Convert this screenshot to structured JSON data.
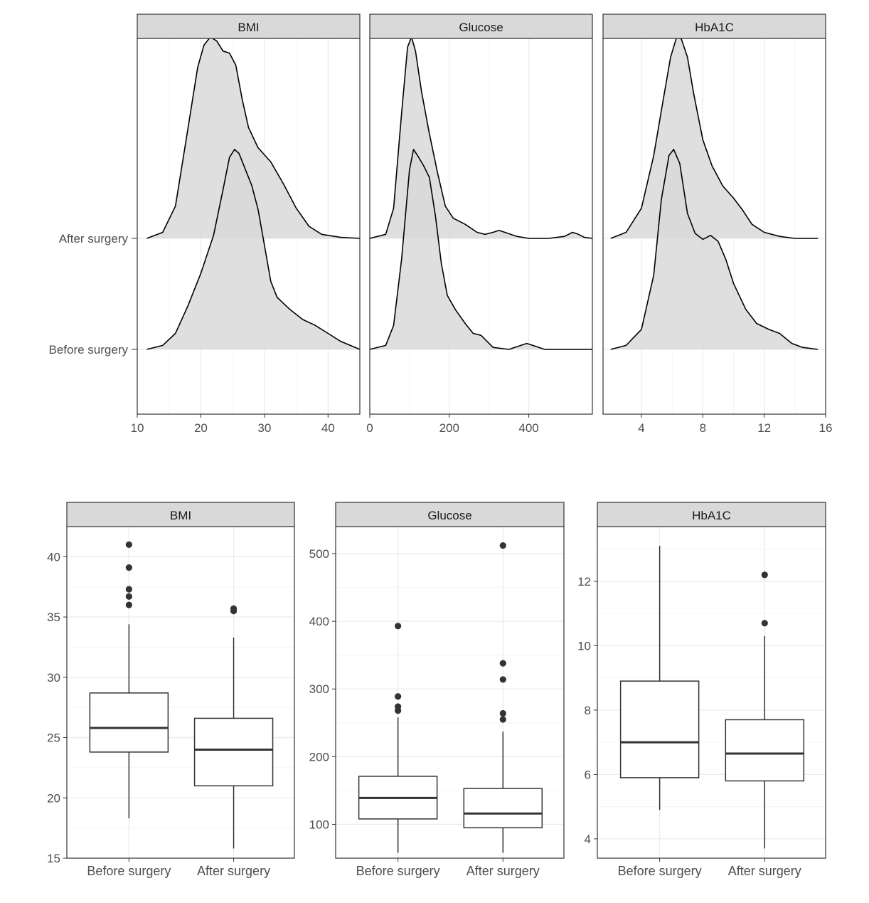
{
  "chart_data": [
    {
      "type": "ridgeline",
      "facets": [
        "BMI",
        "Glucose",
        "HbA1C"
      ],
      "groups": [
        "After surgery",
        "Before surgery"
      ],
      "panels": [
        {
          "facet": "BMI",
          "xlim": [
            10,
            45
          ],
          "xticks": [
            10,
            20,
            30,
            40
          ],
          "series": [
            {
              "group": "After surgery",
              "x": [
                11.5,
                14,
                16,
                18,
                19.5,
                20.5,
                21.5,
                22.5,
                23.5,
                24.5,
                25.5,
                26.5,
                27.5,
                29,
                31,
                33,
                35,
                37,
                39,
                42,
                45
              ],
              "density": [
                0,
                0.03,
                0.16,
                0.55,
                0.85,
                0.96,
                1.0,
                0.98,
                0.93,
                0.92,
                0.86,
                0.69,
                0.55,
                0.45,
                0.38,
                0.27,
                0.15,
                0.06,
                0.02,
                0.005,
                0
              ]
            },
            {
              "group": "Before surgery",
              "x": [
                11.5,
                14,
                16,
                18,
                20,
                22,
                23.5,
                24.5,
                25.3,
                26,
                27,
                28,
                29,
                30,
                31,
                32,
                34,
                36,
                38,
                40,
                42,
                45
              ],
              "density": [
                0,
                0.02,
                0.08,
                0.22,
                0.38,
                0.57,
                0.8,
                0.96,
                1.0,
                0.98,
                0.9,
                0.82,
                0.7,
                0.52,
                0.34,
                0.26,
                0.2,
                0.15,
                0.12,
                0.08,
                0.04,
                0
              ]
            }
          ]
        },
        {
          "facet": "Glucose",
          "xlim": [
            0,
            560
          ],
          "xticks": [
            0,
            200,
            400
          ],
          "series": [
            {
              "group": "After surgery",
              "x": [
                0,
                40,
                60,
                80,
                95,
                105,
                115,
                130,
                150,
                170,
                190,
                210,
                240,
                270,
                290,
                310,
                325,
                340,
                370,
                400,
                450,
                490,
                510,
                525,
                540,
                560
              ],
              "density": [
                0,
                0.02,
                0.15,
                0.62,
                0.95,
                1.0,
                0.93,
                0.73,
                0.52,
                0.33,
                0.16,
                0.1,
                0.07,
                0.03,
                0.02,
                0.03,
                0.04,
                0.03,
                0.01,
                0,
                0,
                0.01,
                0.03,
                0.02,
                0.005,
                0
              ]
            },
            {
              "group": "Before surgery",
              "x": [
                0,
                40,
                60,
                80,
                100,
                110,
                120,
                135,
                150,
                165,
                180,
                195,
                215,
                240,
                260,
                280,
                310,
                350,
                380,
                395,
                410,
                440,
                560
              ],
              "density": [
                0,
                0.02,
                0.12,
                0.45,
                0.9,
                1.0,
                0.97,
                0.92,
                0.86,
                0.67,
                0.43,
                0.27,
                0.2,
                0.13,
                0.08,
                0.07,
                0.01,
                0,
                0.02,
                0.03,
                0.02,
                0,
                0
              ]
            }
          ]
        },
        {
          "facet": "HbA1C",
          "xlim": [
            1.5,
            16
          ],
          "xticks": [
            4,
            8,
            12,
            16
          ],
          "series": [
            {
              "group": "After surgery",
              "x": [
                2,
                3,
                4,
                4.8,
                5.4,
                5.9,
                6.3,
                6.6,
                7,
                7.4,
                8,
                8.6,
                9.3,
                10,
                10.6,
                11.2,
                12,
                13,
                14,
                15.5
              ],
              "density": [
                0,
                0.03,
                0.15,
                0.41,
                0.68,
                0.9,
                1.0,
                0.99,
                0.9,
                0.72,
                0.49,
                0.36,
                0.26,
                0.2,
                0.14,
                0.07,
                0.03,
                0.01,
                0,
                0
              ]
            },
            {
              "group": "Before surgery",
              "x": [
                2,
                3,
                4,
                4.8,
                5.3,
                5.8,
                6.1,
                6.5,
                7,
                7.5,
                8,
                8.5,
                9,
                9.5,
                10,
                10.8,
                11.5,
                12.3,
                13,
                13.8,
                14.5,
                15.5
              ],
              "density": [
                0,
                0.02,
                0.1,
                0.37,
                0.75,
                0.97,
                1.0,
                0.93,
                0.68,
                0.58,
                0.55,
                0.57,
                0.54,
                0.45,
                0.33,
                0.2,
                0.13,
                0.1,
                0.08,
                0.03,
                0.01,
                0
              ]
            }
          ]
        }
      ]
    },
    {
      "type": "boxplot",
      "facets": [
        "BMI",
        "Glucose",
        "HbA1C"
      ],
      "categories": [
        "Before surgery",
        "After surgery"
      ],
      "panels": [
        {
          "facet": "BMI",
          "ylim": [
            15,
            42.5
          ],
          "yticks": [
            15,
            20,
            25,
            30,
            35,
            40
          ],
          "boxes": [
            {
              "category": "Before surgery",
              "min": 18.3,
              "q1": 23.8,
              "median": 25.8,
              "q3": 28.7,
              "max": 34.4,
              "outliers": [
                36.0,
                36.7,
                37.3,
                39.1,
                41.0
              ]
            },
            {
              "category": "After surgery",
              "min": 15.8,
              "q1": 21.0,
              "median": 24.0,
              "q3": 26.6,
              "max": 33.3,
              "outliers": [
                35.5,
                35.7
              ]
            }
          ]
        },
        {
          "facet": "Glucose",
          "ylim": [
            50,
            540
          ],
          "yticks": [
            100,
            200,
            300,
            400,
            500
          ],
          "boxes": [
            {
              "category": "Before surgery",
              "min": 58,
              "q1": 108,
              "median": 139,
              "q3": 171,
              "max": 258,
              "outliers": [
                268,
                274,
                289,
                393
              ]
            },
            {
              "category": "After surgery",
              "min": 58,
              "q1": 95,
              "median": 116,
              "q3": 153,
              "max": 237,
              "outliers": [
                255,
                264,
                314,
                338,
                512
              ]
            }
          ]
        },
        {
          "facet": "HbA1C",
          "ylim": [
            3.4,
            13.7
          ],
          "yticks": [
            4,
            6,
            8,
            10,
            12
          ],
          "boxes": [
            {
              "category": "Before surgery",
              "min": 4.9,
              "q1": 5.9,
              "median": 7.0,
              "q3": 8.9,
              "max": 13.1,
              "outliers": []
            },
            {
              "category": "After surgery",
              "min": 3.7,
              "q1": 5.8,
              "median": 6.65,
              "q3": 7.7,
              "max": 10.3,
              "outliers": [
                10.7,
                12.2
              ]
            }
          ]
        }
      ]
    }
  ],
  "colors": {
    "fill": "#d9d9d9",
    "strip": "#d9d9d9",
    "border": "#333333",
    "grid_major": "#ebebeb",
    "grid_minor": "#f5f5f5",
    "line": "#000000",
    "point": "#333333"
  }
}
